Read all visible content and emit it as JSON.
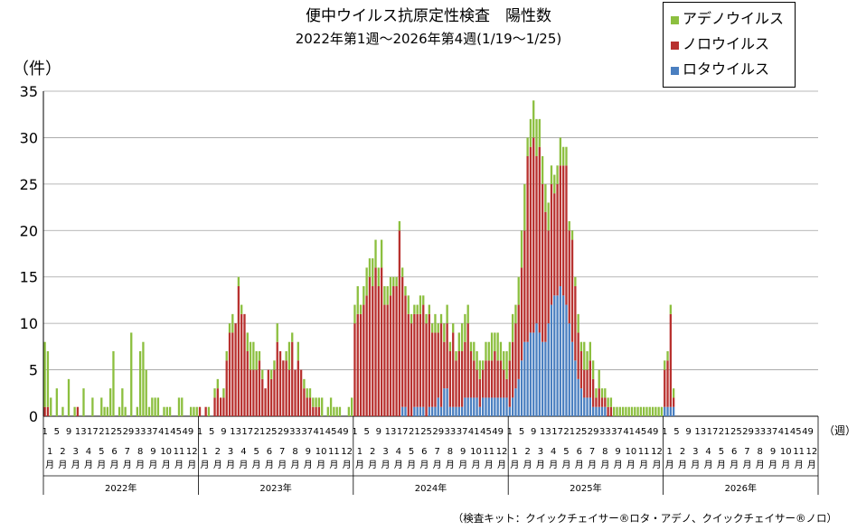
{
  "chart_data": {
    "type": "bar",
    "stacked": true,
    "title": "便中ウイルス抗原定性検査　陽性数",
    "subtitle": "2022年第1週〜2026年第4週(1/19〜1/25)",
    "ylabel": "（件）",
    "xlabel": "（週）",
    "ylim": [
      0,
      35
    ],
    "yticks": [
      0,
      5,
      10,
      15,
      20,
      25,
      30,
      35
    ],
    "grid": true,
    "legend": {
      "position": "top-right"
    },
    "series": [
      {
        "name": "アデノウイルス",
        "color": "#8cbf3f"
      },
      {
        "name": "ノロウイルス",
        "color": "#b8312f"
      },
      {
        "name": "ロタウイルス",
        "color": "#4a7fc0"
      }
    ],
    "legend_order": [
      "アデノウイルス",
      "ノロウイルス",
      "ロタウイルス"
    ],
    "years": [
      {
        "label": "2022年",
        "adeno": [
          7,
          6,
          2,
          0,
          3,
          0,
          1,
          0,
          4,
          0,
          1,
          0,
          0,
          3,
          0,
          0,
          2,
          0,
          0,
          2,
          1,
          1,
          3,
          7,
          0,
          1,
          3,
          1,
          0,
          9,
          0,
          1,
          7,
          8,
          5,
          1,
          2,
          2,
          2,
          0,
          1,
          1,
          1,
          0,
          0,
          2,
          2,
          0,
          0,
          1,
          1,
          1
        ],
        "noro": [
          1,
          1,
          0,
          0,
          0,
          0,
          0,
          0,
          0,
          0,
          0,
          1,
          0,
          0,
          0,
          0,
          0,
          0,
          0,
          0,
          0,
          0,
          0,
          0,
          0,
          0,
          0,
          0,
          0,
          0,
          0,
          0,
          0,
          0,
          0,
          0,
          0,
          0,
          0,
          0,
          0,
          0,
          0,
          0,
          0,
          0,
          0,
          0,
          0,
          0,
          0,
          0
        ],
        "rota": [
          0,
          0,
          0,
          0,
          0,
          0,
          0,
          0,
          0,
          0,
          0,
          0,
          0,
          0,
          0,
          0,
          0,
          0,
          0,
          0,
          0,
          0,
          0,
          0,
          0,
          0,
          0,
          0,
          0,
          0,
          0,
          0,
          0,
          0,
          0,
          0,
          0,
          0,
          0,
          0,
          0,
          0,
          0,
          0,
          0,
          0,
          0,
          0,
          0,
          0,
          0,
          0
        ]
      },
      {
        "label": "2023年",
        "adeno": [
          0,
          0,
          0,
          1,
          0,
          1,
          1,
          0,
          1,
          1,
          1,
          2,
          0,
          1,
          1,
          0,
          2,
          3,
          3,
          2,
          1,
          1,
          0,
          0,
          1,
          1,
          2,
          0,
          0,
          1,
          3,
          1,
          0,
          2,
          0,
          1,
          1,
          1,
          1,
          1,
          1,
          2,
          0,
          1,
          2,
          1,
          1,
          1,
          0,
          0,
          1,
          2
        ],
        "noro": [
          1,
          0,
          1,
          0,
          0,
          2,
          3,
          2,
          2,
          6,
          9,
          9,
          10,
          14,
          11,
          11,
          7,
          5,
          5,
          5,
          6,
          4,
          3,
          5,
          4,
          5,
          8,
          7,
          6,
          6,
          5,
          8,
          5,
          6,
          5,
          3,
          2,
          2,
          1,
          1,
          1,
          0,
          0,
          0,
          0,
          0,
          0,
          0,
          0,
          0,
          0,
          0
        ],
        "rota": [
          0,
          0,
          0,
          0,
          0,
          0,
          0,
          0,
          0,
          0,
          0,
          0,
          0,
          0,
          0,
          0,
          0,
          0,
          0,
          0,
          0,
          0,
          0,
          0,
          0,
          0,
          0,
          0,
          0,
          0,
          0,
          0,
          0,
          0,
          0,
          0,
          0,
          0,
          0,
          0,
          0,
          0,
          0,
          0,
          0,
          0,
          0,
          0,
          0,
          0,
          0,
          0
        ]
      },
      {
        "label": "2024年",
        "adeno": [
          2,
          3,
          1,
          2,
          3,
          2,
          3,
          3,
          2,
          3,
          2,
          2,
          2,
          1,
          1,
          1,
          1,
          1,
          2,
          1,
          1,
          1,
          2,
          1,
          1,
          1,
          1,
          2,
          1,
          1,
          2,
          2,
          1,
          1,
          1,
          2,
          3,
          3,
          2,
          1,
          2,
          2,
          2,
          1,
          2,
          2,
          3,
          2,
          3,
          2,
          2,
          3
        ],
        "noro": [
          10,
          11,
          11,
          12,
          13,
          15,
          14,
          16,
          14,
          16,
          12,
          12,
          13,
          14,
          14,
          20,
          14,
          12,
          11,
          10,
          10,
          10,
          10,
          11,
          10,
          10,
          8,
          8,
          7,
          9,
          5,
          7,
          6,
          8,
          5,
          6,
          6,
          6,
          8,
          5,
          4,
          3,
          3,
          3,
          4,
          4,
          4,
          5,
          4,
          4,
          3,
          2
        ],
        "rota": [
          0,
          0,
          0,
          0,
          0,
          0,
          0,
          0,
          0,
          0,
          0,
          0,
          0,
          0,
          0,
          0,
          1,
          1,
          0,
          0,
          1,
          1,
          1,
          1,
          0,
          1,
          1,
          1,
          2,
          1,
          3,
          3,
          1,
          1,
          1,
          1,
          1,
          2,
          2,
          2,
          2,
          2,
          1,
          2,
          2,
          2,
          2,
          2,
          2,
          2,
          2,
          2
        ]
      },
      {
        "label": "2025年",
        "adeno": [
          2,
          3,
          2,
          3,
          4,
          5,
          2,
          3,
          4,
          4,
          3,
          3,
          3,
          3,
          2,
          2,
          2,
          3,
          2,
          2,
          1,
          1,
          1,
          2,
          1,
          3,
          2,
          2,
          2,
          1,
          2,
          1,
          1,
          1,
          1,
          1,
          1,
          1,
          1,
          1,
          1,
          1,
          1,
          1,
          1,
          1,
          1,
          1,
          1,
          1,
          1,
          1
        ],
        "noro": [
          5,
          6,
          7,
          8,
          10,
          12,
          20,
          20,
          21,
          18,
          20,
          17,
          14,
          10,
          13,
          11,
          12,
          13,
          14,
          15,
          10,
          11,
          8,
          5,
          4,
          3,
          3,
          4,
          3,
          1,
          2,
          1,
          1,
          1,
          1,
          0,
          0,
          0,
          0,
          0,
          0,
          0,
          0,
          0,
          0,
          0,
          0,
          0,
          0,
          0,
          0,
          0
        ],
        "rota": [
          1,
          2,
          3,
          4,
          6,
          8,
          8,
          9,
          9,
          10,
          9,
          8,
          8,
          10,
          12,
          13,
          13,
          14,
          13,
          12,
          10,
          8,
          6,
          4,
          3,
          2,
          2,
          2,
          1,
          1,
          1,
          1,
          1,
          0,
          0,
          0,
          0,
          0,
          0,
          0,
          0,
          0,
          0,
          0,
          0,
          0,
          0,
          0,
          0,
          0,
          0,
          0
        ]
      },
      {
        "label": "2026年",
        "adeno": [
          1,
          1,
          1,
          1
        ],
        "noro": [
          4,
          5,
          10,
          1
        ],
        "rota": [
          1,
          1,
          1,
          1
        ]
      }
    ],
    "week_tick_labels": [
      "1",
      "5",
      "9",
      "13",
      "17",
      "21",
      "25",
      "29",
      "33",
      "37",
      "41",
      "45",
      "49"
    ],
    "month_labels": [
      "1",
      "2",
      "3",
      "4",
      "5",
      "6",
      "7",
      "8",
      "9",
      "10",
      "11",
      "12"
    ],
    "month_suffix": "月",
    "note": "（検査キット：クイックチェイサー®ロタ・アデノ、クイックチェイサー®ノロ）"
  }
}
